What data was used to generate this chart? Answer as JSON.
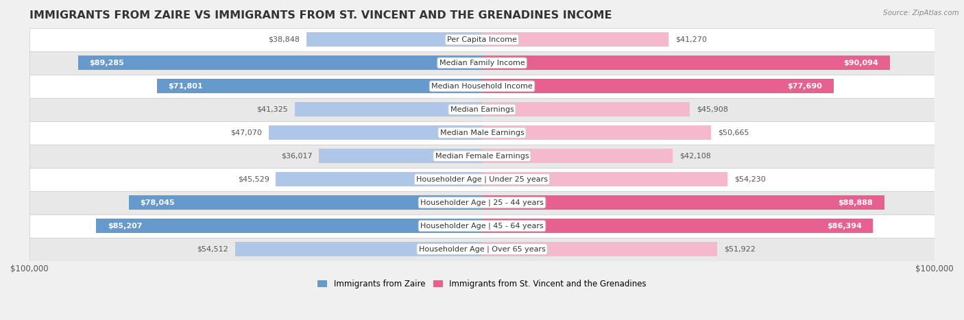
{
  "title": "IMMIGRANTS FROM ZAIRE VS IMMIGRANTS FROM ST. VINCENT AND THE GRENADINES INCOME",
  "source": "Source: ZipAtlas.com",
  "categories": [
    "Per Capita Income",
    "Median Family Income",
    "Median Household Income",
    "Median Earnings",
    "Median Male Earnings",
    "Median Female Earnings",
    "Householder Age | Under 25 years",
    "Householder Age | 25 - 44 years",
    "Householder Age | 45 - 64 years",
    "Householder Age | Over 65 years"
  ],
  "zaire_values": [
    38848,
    89285,
    71801,
    41325,
    47070,
    36017,
    45529,
    78045,
    85207,
    54512
  ],
  "stv_values": [
    41270,
    90094,
    77690,
    45908,
    50665,
    42108,
    54230,
    88888,
    86394,
    51922
  ],
  "zaire_labels": [
    "$38,848",
    "$89,285",
    "$71,801",
    "$41,325",
    "$47,070",
    "$36,017",
    "$45,529",
    "$78,045",
    "$85,207",
    "$54,512"
  ],
  "stv_labels": [
    "$41,270",
    "$90,094",
    "$77,690",
    "$45,908",
    "$50,665",
    "$42,108",
    "$54,230",
    "$88,888",
    "$86,394",
    "$51,922"
  ],
  "max_value": 100000,
  "zaire_color_light": "#aec6e8",
  "zaire_color_dark": "#6699cc",
  "stv_color_light": "#f5b8cc",
  "stv_color_dark": "#e86090",
  "legend_zaire": "Immigrants from Zaire",
  "legend_stv": "Immigrants from St. Vincent and the Grenadines",
  "background_color": "#f0f0f0",
  "row_bg_light": "#ffffff",
  "row_bg_dark": "#e8e8e8",
  "bar_height": 0.62,
  "title_fontsize": 11.5,
  "label_fontsize": 8,
  "category_fontsize": 8,
  "axis_label": "$100,000",
  "zaire_inside_threshold": 60000,
  "stv_inside_threshold": 60000
}
